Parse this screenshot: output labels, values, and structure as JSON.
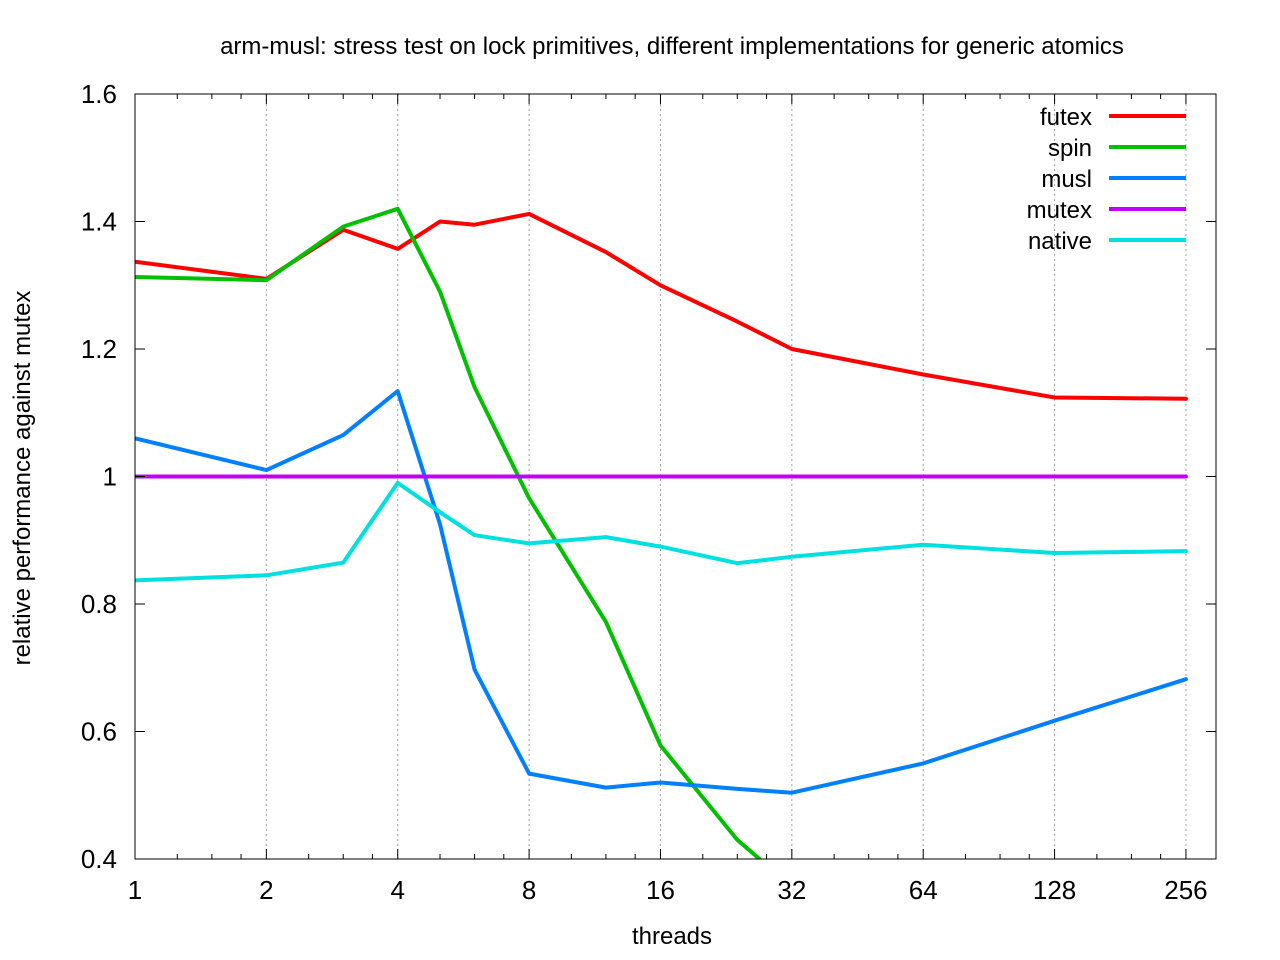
{
  "chart_data": {
    "type": "line",
    "title": "arm-musl: stress test on lock primitives, different implementations for generic atomics",
    "xlabel": "threads",
    "ylabel": "relative performance against mutex",
    "x_scale": "log2",
    "xlim": [
      1,
      300
    ],
    "ylim": [
      0.4,
      1.6
    ],
    "x_ticks": [
      1,
      2,
      4,
      8,
      16,
      32,
      64,
      128,
      256
    ],
    "x_tick_labels": [
      "1",
      "2",
      "4",
      "8",
      "16",
      "32",
      "64",
      "128",
      "256"
    ],
    "y_ticks": [
      0.4,
      0.6,
      0.8,
      1.0,
      1.2,
      1.4,
      1.6
    ],
    "y_tick_labels": [
      "0.4",
      "0.6",
      "0.8",
      "1",
      "1.2",
      "1.4",
      "1.6"
    ],
    "grid": "vertical dotted at x ticks",
    "legend_position": "top-right",
    "series": [
      {
        "name": "futex",
        "color": "#ff0000",
        "x": [
          1,
          2,
          3,
          4,
          5,
          6,
          8,
          12,
          16,
          24,
          32,
          64,
          128,
          256
        ],
        "y": [
          1.337,
          1.31,
          1.387,
          1.357,
          1.4,
          1.395,
          1.412,
          1.352,
          1.3,
          1.243,
          1.2,
          1.16,
          1.124,
          1.122
        ]
      },
      {
        "name": "spin",
        "color": "#00c000",
        "x": [
          1,
          2,
          3,
          4,
          5,
          6,
          8,
          12,
          16,
          24,
          27
        ],
        "y": [
          1.313,
          1.308,
          1.392,
          1.42,
          1.29,
          1.14,
          0.966,
          0.772,
          0.578,
          0.43,
          0.4
        ]
      },
      {
        "name": "musl",
        "color": "#0080ff",
        "x": [
          1,
          2,
          3,
          4,
          5,
          6,
          8,
          12,
          16,
          24,
          32,
          64,
          128,
          256
        ],
        "y": [
          1.06,
          1.01,
          1.065,
          1.134,
          0.925,
          0.697,
          0.534,
          0.512,
          0.52,
          0.51,
          0.504,
          0.55,
          0.617,
          0.682
        ]
      },
      {
        "name": "mutex",
        "color": "#c000ff",
        "x": [
          1,
          2,
          3,
          4,
          5,
          6,
          8,
          12,
          16,
          24,
          32,
          64,
          128,
          256
        ],
        "y": [
          1,
          1,
          1,
          1,
          1,
          1,
          1,
          1,
          1,
          1,
          1,
          1,
          1,
          1
        ]
      },
      {
        "name": "native",
        "color": "#00e0e0",
        "x": [
          1,
          2,
          3,
          4,
          5,
          6,
          8,
          12,
          16,
          24,
          32,
          64,
          128,
          256
        ],
        "y": [
          0.837,
          0.845,
          0.865,
          0.99,
          0.944,
          0.908,
          0.895,
          0.905,
          0.89,
          0.864,
          0.874,
          0.893,
          0.88,
          0.883
        ]
      }
    ]
  }
}
